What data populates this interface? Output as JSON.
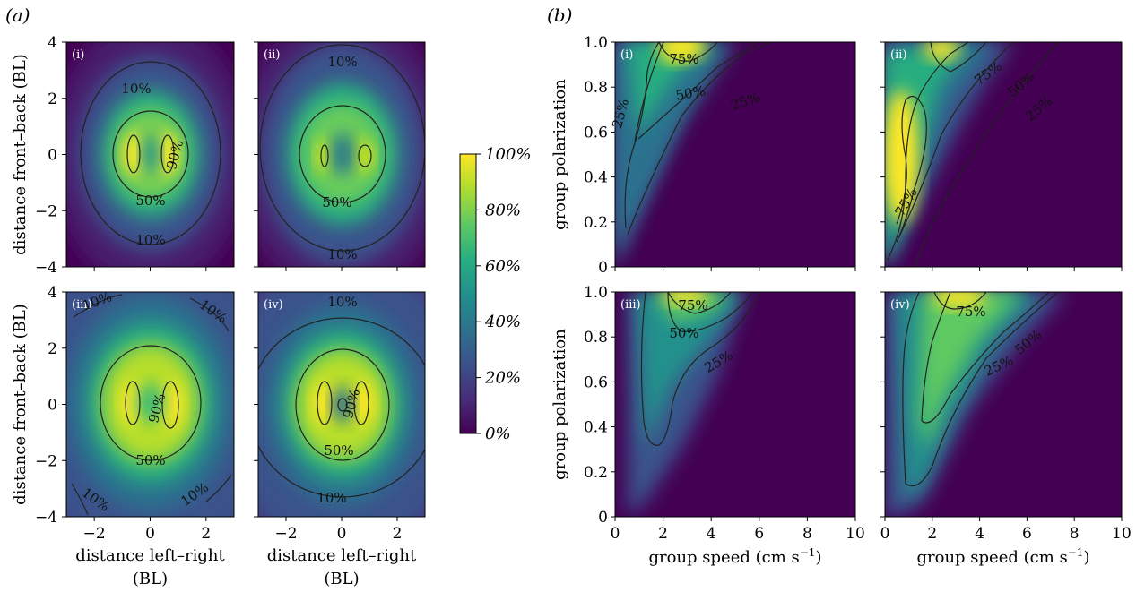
{
  "figure": {
    "panel_a_label": "(a)",
    "panel_b_label": "(b)"
  },
  "colorbar": {
    "colormap": "viridis",
    "range": [
      0,
      100
    ],
    "ticks": [
      "0%",
      "20%",
      "40%",
      "60%",
      "80%",
      "100%"
    ]
  },
  "chart_data": [
    {
      "type": "heatmap",
      "panel": "a",
      "sublabels": [
        "(i)",
        "(ii)",
        "(iii)",
        "(iv)"
      ],
      "xlabel": "distance left–right\n(BL)",
      "ylabel": "distance front–back (BL)",
      "xlim": [
        -3,
        3
      ],
      "ylim": [
        -4,
        4
      ],
      "xticks": [
        "−2",
        "0",
        "2"
      ],
      "yticks": [
        "−4",
        "−2",
        "0",
        "2",
        "4"
      ],
      "contour_levels": [
        "10%",
        "50%",
        "90%"
      ],
      "value_range": [
        0,
        100
      ]
    },
    {
      "type": "heatmap",
      "panel": "b",
      "sublabels": [
        "(i)",
        "(ii)",
        "(iii)",
        "(iv)"
      ],
      "xlabel": "group speed (cm s",
      "xlabel_sup": "−1",
      "xlabel_tail": ")",
      "ylabel": "group polarization",
      "xlim": [
        0,
        10
      ],
      "ylim": [
        0,
        1
      ],
      "xticks": [
        "0",
        "2",
        "4",
        "6",
        "8",
        "10"
      ],
      "yticks": [
        "0",
        "0.2",
        "0.4",
        "0.6",
        "0.8",
        "1.0"
      ],
      "contour_levels": [
        "25%",
        "50%",
        "75%"
      ],
      "value_range": [
        0,
        100
      ]
    }
  ]
}
